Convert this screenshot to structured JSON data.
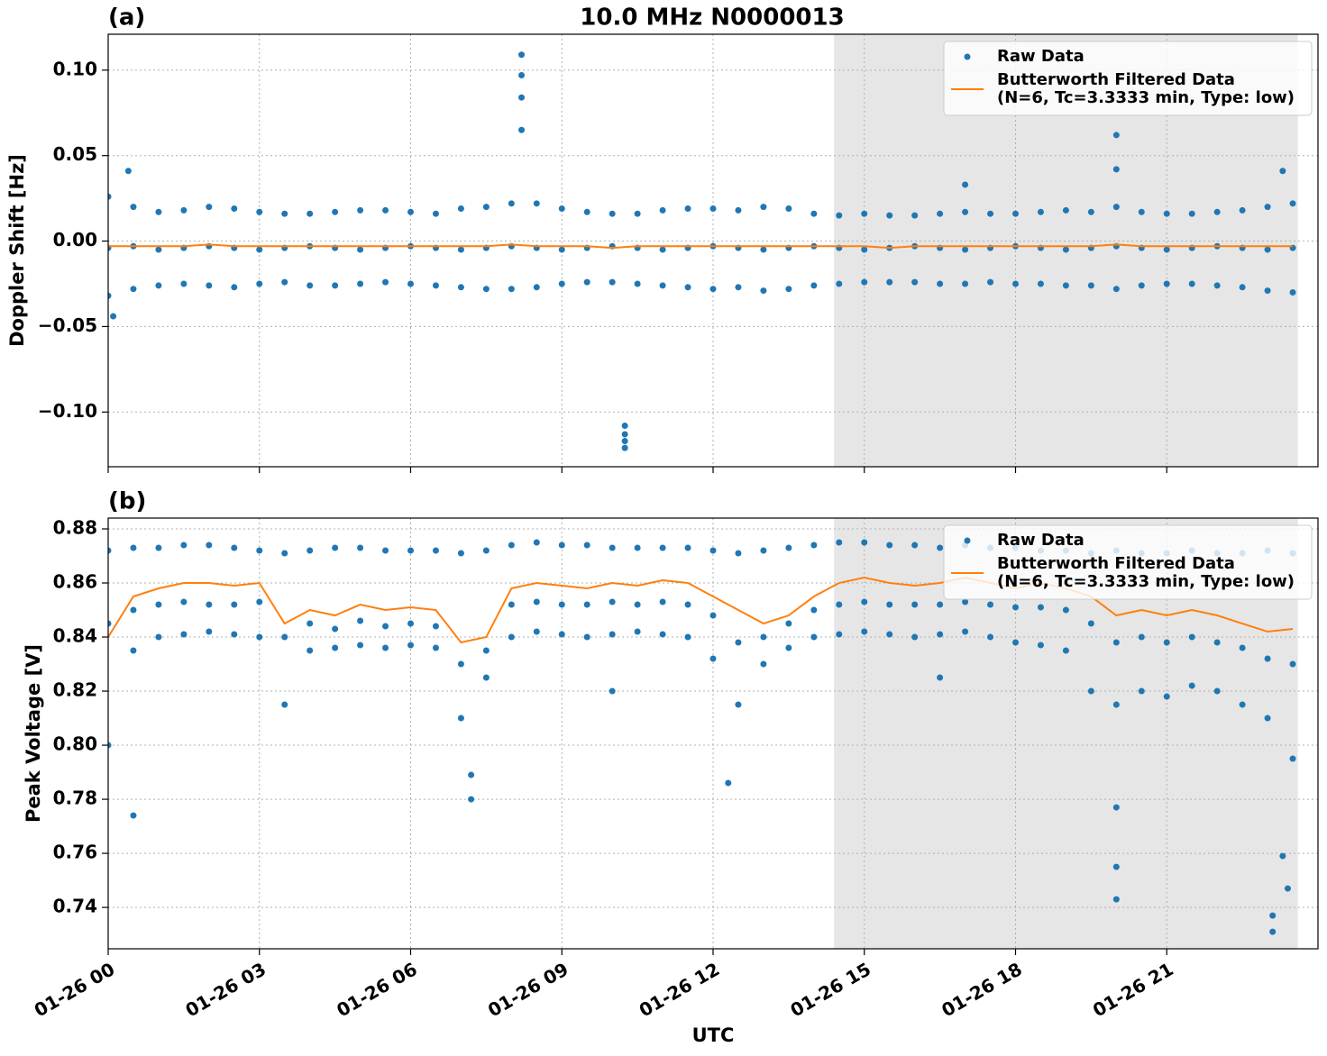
{
  "chart_data": [
    {
      "type": "scatter",
      "panel_label": "(a)",
      "title": "10.0 MHz N0000013",
      "ylabel": "Doppler Shift [Hz]",
      "xlim": [
        0,
        24
      ],
      "xticks": [
        0,
        3,
        6,
        9,
        12,
        15,
        18,
        21
      ],
      "ylim": [
        -0.132,
        0.121
      ],
      "yticks": [
        {
          "value": -0.1,
          "label": "−0.10"
        },
        {
          "value": -0.05,
          "label": "−0.05"
        },
        {
          "value": 0,
          "label": "0.00"
        },
        {
          "value": 0.05,
          "label": "0.05"
        },
        {
          "value": 0.1,
          "label": "0.10"
        }
      ],
      "grid": true,
      "shaded_span": [
        14.4,
        23.6
      ],
      "legend": "upper right",
      "series": [
        {
          "name": "Raw Data",
          "mode": "markers",
          "color": "#1f77b4",
          "x": [
            0,
            0.5,
            1,
            1.5,
            2,
            2.5,
            3,
            3.5,
            4,
            4.5,
            5,
            5.5,
            6,
            6.5,
            7,
            7.5,
            8,
            8.5,
            9,
            9.5,
            10,
            10.5,
            11,
            11.5,
            12,
            12.5,
            13,
            13.5,
            14,
            14.5,
            15,
            15.5,
            16,
            16.5,
            17,
            17.5,
            18,
            18.5,
            19,
            19.5,
            20,
            20.5,
            21,
            21.5,
            22,
            22.5,
            23,
            23.5,
            0,
            0.5,
            1,
            1.5,
            2,
            2.5,
            3,
            3.5,
            4,
            4.5,
            5,
            5.5,
            6,
            6.5,
            7,
            7.5,
            8,
            8.5,
            9,
            9.5,
            10,
            10.5,
            11,
            11.5,
            12,
            12.5,
            13,
            13.5,
            14,
            14.5,
            15,
            15.5,
            16,
            16.5,
            17,
            17.5,
            18,
            18.5,
            19,
            19.5,
            20,
            20.5,
            21,
            21.5,
            22,
            22.5,
            23,
            23.5,
            0,
            0.5,
            1,
            1.5,
            2,
            2.5,
            3,
            3.5,
            4,
            4.5,
            5,
            5.5,
            6,
            6.5,
            7,
            7.5,
            8,
            8.5,
            9,
            9.5,
            10,
            10.5,
            11,
            11.5,
            12,
            12.5,
            13,
            13.5,
            14,
            14.5,
            15,
            15.5,
            16,
            16.5,
            17,
            17.5,
            18,
            18.5,
            19,
            19.5,
            20,
            20.5,
            21,
            21.5,
            22,
            22.5,
            23,
            23.5,
            8.2,
            8.2,
            8.2,
            8.2,
            10.25,
            10.25,
            10.25,
            10.25,
            20,
            20,
            0.1,
            0.4,
            23.3,
            17
          ],
          "values": [
            0.026,
            0.02,
            0.017,
            0.018,
            0.02,
            0.019,
            0.017,
            0.016,
            0.016,
            0.017,
            0.018,
            0.018,
            0.017,
            0.016,
            0.019,
            0.02,
            0.022,
            0.022,
            0.019,
            0.017,
            0.016,
            0.016,
            0.018,
            0.019,
            0.019,
            0.018,
            0.02,
            0.019,
            0.016,
            0.015,
            0.016,
            0.015,
            0.015,
            0.016,
            0.017,
            0.016,
            0.016,
            0.017,
            0.018,
            0.017,
            0.02,
            0.017,
            0.016,
            0.016,
            0.017,
            0.018,
            0.02,
            0.022,
            -0.004,
            -0.003,
            -0.005,
            -0.004,
            -0.003,
            -0.004,
            -0.005,
            -0.004,
            -0.003,
            -0.004,
            -0.005,
            -0.004,
            -0.003,
            -0.004,
            -0.005,
            -0.004,
            -0.003,
            -0.004,
            -0.005,
            -0.004,
            -0.003,
            -0.004,
            -0.005,
            -0.004,
            -0.003,
            -0.004,
            -0.005,
            -0.004,
            -0.003,
            -0.004,
            -0.005,
            -0.004,
            -0.003,
            -0.004,
            -0.005,
            -0.004,
            -0.003,
            -0.004,
            -0.005,
            -0.004,
            -0.003,
            -0.004,
            -0.005,
            -0.004,
            -0.003,
            -0.004,
            -0.005,
            -0.004,
            -0.032,
            -0.028,
            -0.026,
            -0.025,
            -0.026,
            -0.027,
            -0.025,
            -0.024,
            -0.026,
            -0.026,
            -0.025,
            -0.024,
            -0.025,
            -0.026,
            -0.027,
            -0.028,
            -0.028,
            -0.027,
            -0.025,
            -0.024,
            -0.024,
            -0.025,
            -0.026,
            -0.027,
            -0.028,
            -0.027,
            -0.029,
            -0.028,
            -0.026,
            -0.025,
            -0.024,
            -0.024,
            -0.024,
            -0.025,
            -0.025,
            -0.024,
            -0.025,
            -0.025,
            -0.026,
            -0.026,
            -0.028,
            -0.026,
            -0.025,
            -0.025,
            -0.026,
            -0.027,
            -0.029,
            -0.03,
            0.109,
            0.097,
            0.084,
            0.065,
            -0.108,
            -0.113,
            -0.117,
            -0.121,
            0.062,
            0.042,
            -0.044,
            0.041,
            0.041,
            0.033
          ]
        },
        {
          "name": "Butterworth Filtered Data\n(N=6, Tc=3.3333 min, Type: low)",
          "mode": "line",
          "color": "#ff7f0e",
          "x": [
            0,
            0.5,
            1,
            1.5,
            2,
            2.5,
            3,
            3.5,
            4,
            4.5,
            5,
            5.5,
            6,
            6.5,
            7,
            7.5,
            8,
            8.5,
            9,
            9.5,
            10,
            10.5,
            11,
            11.5,
            12,
            12.5,
            13,
            13.5,
            14,
            14.5,
            15,
            15.5,
            16,
            16.5,
            17,
            17.5,
            18,
            18.5,
            19,
            19.5,
            20,
            20.5,
            21,
            21.5,
            22,
            22.5,
            23,
            23.5
          ],
          "values": [
            -0.003,
            -0.003,
            -0.003,
            -0.003,
            -0.002,
            -0.003,
            -0.003,
            -0.003,
            -0.003,
            -0.003,
            -0.003,
            -0.003,
            -0.003,
            -0.003,
            -0.003,
            -0.003,
            -0.002,
            -0.003,
            -0.003,
            -0.003,
            -0.004,
            -0.003,
            -0.003,
            -0.003,
            -0.003,
            -0.003,
            -0.003,
            -0.003,
            -0.003,
            -0.003,
            -0.003,
            -0.004,
            -0.003,
            -0.003,
            -0.003,
            -0.003,
            -0.003,
            -0.003,
            -0.003,
            -0.003,
            -0.002,
            -0.003,
            -0.003,
            -0.003,
            -0.003,
            -0.003,
            -0.003,
            -0.003
          ]
        }
      ]
    },
    {
      "type": "scatter",
      "panel_label": "(b)",
      "ylabel": "Peak Voltage [V]",
      "xlabel": "UTC",
      "xlim": [
        0,
        24
      ],
      "xticks": [
        {
          "value": 0,
          "label": "01-26 00"
        },
        {
          "value": 3,
          "label": "01-26 03"
        },
        {
          "value": 6,
          "label": "01-26 06"
        },
        {
          "value": 9,
          "label": "01-26 09"
        },
        {
          "value": 12,
          "label": "01-26 12"
        },
        {
          "value": 15,
          "label": "01-26 15"
        },
        {
          "value": 18,
          "label": "01-26 18"
        },
        {
          "value": 21,
          "label": "01-26 21"
        }
      ],
      "ylim": [
        0.7247,
        0.884
      ],
      "yticks": [
        0.74,
        0.76,
        0.78,
        {
          "value": 0.8,
          "label": "0.80"
        },
        0.82,
        0.84,
        0.86,
        0.88
      ],
      "grid": true,
      "shaded_span": [
        14.4,
        23.6
      ],
      "legend": "upper right",
      "series": [
        {
          "name": "Raw Data",
          "mode": "markers",
          "color": "#1f77b4",
          "x": [
            0,
            0.5,
            1,
            1.5,
            2,
            2.5,
            3,
            3.5,
            4,
            4.5,
            5,
            5.5,
            6,
            6.5,
            7,
            7.5,
            8,
            8.5,
            9,
            9.5,
            10,
            10.5,
            11,
            11.5,
            12,
            12.5,
            13,
            13.5,
            14,
            14.5,
            15,
            15.5,
            16,
            16.5,
            17,
            17.5,
            18,
            18.5,
            19,
            19.5,
            20,
            20.5,
            21,
            21.5,
            22,
            22.5,
            23,
            23.5,
            0,
            0.5,
            1,
            1.5,
            2,
            2.5,
            3,
            3.5,
            4,
            4.5,
            5,
            5.5,
            6,
            6.5,
            7,
            7.5,
            8,
            8.5,
            9,
            9.5,
            10,
            10.5,
            11,
            11.5,
            12,
            12.5,
            13,
            13.5,
            14,
            14.5,
            15,
            15.5,
            16,
            16.5,
            17,
            17.5,
            18,
            18.5,
            19,
            19.5,
            20,
            20.5,
            21,
            21.5,
            22,
            22.5,
            23,
            23.5,
            0,
            0.5,
            1,
            1.5,
            2,
            2.5,
            3,
            3.5,
            4,
            4.5,
            5,
            5.5,
            6,
            6.5,
            7,
            7.5,
            8,
            8.5,
            9,
            9.5,
            10,
            10.5,
            11,
            11.5,
            12,
            12.5,
            13,
            13.5,
            14,
            14.5,
            15,
            15.5,
            16,
            16.5,
            17,
            17.5,
            18,
            18.5,
            19,
            19.5,
            20,
            20.5,
            21,
            21.5,
            22,
            22.5,
            23,
            23.5,
            0.5,
            7.2,
            7.2,
            12.3,
            20,
            20,
            20,
            23.1,
            23.1,
            23.4,
            23.3,
            10,
            16.5
          ],
          "values": [
            0.872,
            0.873,
            0.873,
            0.874,
            0.874,
            0.873,
            0.872,
            0.871,
            0.872,
            0.873,
            0.873,
            0.872,
            0.872,
            0.872,
            0.871,
            0.872,
            0.874,
            0.875,
            0.874,
            0.874,
            0.873,
            0.873,
            0.873,
            0.873,
            0.872,
            0.871,
            0.872,
            0.873,
            0.874,
            0.875,
            0.875,
            0.874,
            0.874,
            0.873,
            0.874,
            0.873,
            0.873,
            0.872,
            0.872,
            0.871,
            0.872,
            0.871,
            0.871,
            0.872,
            0.871,
            0.871,
            0.872,
            0.871,
            0.845,
            0.85,
            0.852,
            0.853,
            0.852,
            0.852,
            0.853,
            0.84,
            0.845,
            0.843,
            0.846,
            0.844,
            0.845,
            0.844,
            0.83,
            0.835,
            0.852,
            0.853,
            0.852,
            0.852,
            0.853,
            0.852,
            0.853,
            0.852,
            0.848,
            0.838,
            0.84,
            0.845,
            0.85,
            0.852,
            0.853,
            0.852,
            0.852,
            0.852,
            0.853,
            0.852,
            0.851,
            0.851,
            0.85,
            0.845,
            0.838,
            0.84,
            0.838,
            0.84,
            0.838,
            0.836,
            0.832,
            0.83,
            0.8,
            0.835,
            0.84,
            0.841,
            0.842,
            0.841,
            0.84,
            0.815,
            0.835,
            0.836,
            0.837,
            0.836,
            0.837,
            0.836,
            0.81,
            0.825,
            0.84,
            0.842,
            0.841,
            0.84,
            0.841,
            0.842,
            0.841,
            0.84,
            0.832,
            0.815,
            0.83,
            0.836,
            0.84,
            0.841,
            0.842,
            0.841,
            0.84,
            0.841,
            0.842,
            0.84,
            0.838,
            0.837,
            0.835,
            0.82,
            0.815,
            0.82,
            0.818,
            0.822,
            0.82,
            0.815,
            0.81,
            0.795,
            0.774,
            0.78,
            0.789,
            0.786,
            0.743,
            0.755,
            0.777,
            0.731,
            0.737,
            0.747,
            0.759,
            0.82,
            0.825
          ]
        },
        {
          "name": "Butterworth Filtered Data\n(N=6, Tc=3.3333 min, Type: low)",
          "mode": "line",
          "color": "#ff7f0e",
          "x": [
            0,
            0.5,
            1,
            1.5,
            2,
            2.5,
            3,
            3.5,
            4,
            4.5,
            5,
            5.5,
            6,
            6.5,
            7,
            7.5,
            8,
            8.5,
            9,
            9.5,
            10,
            10.5,
            11,
            11.5,
            12,
            12.5,
            13,
            13.5,
            14,
            14.5,
            15,
            15.5,
            16,
            16.5,
            17,
            17.5,
            18,
            18.5,
            19,
            19.5,
            20,
            20.5,
            21,
            21.5,
            22,
            22.5,
            23,
            23.5
          ],
          "values": [
            0.84,
            0.855,
            0.858,
            0.86,
            0.86,
            0.859,
            0.86,
            0.845,
            0.85,
            0.848,
            0.852,
            0.85,
            0.851,
            0.85,
            0.838,
            0.84,
            0.858,
            0.86,
            0.859,
            0.858,
            0.86,
            0.859,
            0.861,
            0.86,
            0.855,
            0.85,
            0.845,
            0.848,
            0.855,
            0.86,
            0.862,
            0.86,
            0.859,
            0.86,
            0.862,
            0.86,
            0.858,
            0.86,
            0.858,
            0.855,
            0.848,
            0.85,
            0.848,
            0.85,
            0.848,
            0.845,
            0.842,
            0.843
          ]
        }
      ]
    }
  ]
}
